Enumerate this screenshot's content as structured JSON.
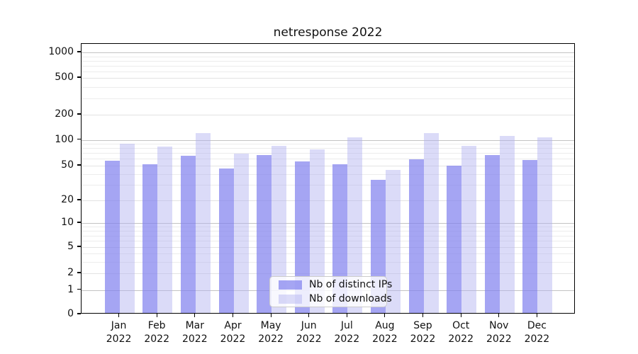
{
  "title": "netresponse 2022",
  "legend": {
    "item1": "Nb of distinct IPs",
    "item2": "Nb of downloads"
  },
  "colors": {
    "distinct_ips_bar": "rgba(130,130,238,0.72)",
    "downloads_bar": "rgba(176,176,240,0.45)",
    "grid_decade": "#c3c3c3",
    "grid_labeled": "#e3e3e3",
    "grid_minor": "#ececec",
    "axis": "#000000",
    "background": "#ffffff"
  },
  "chart_data": {
    "type": "bar",
    "title": "netresponse 2022",
    "xlabel": "",
    "ylabel": "",
    "yscale": "symlog",
    "ylim": [
      0,
      1300
    ],
    "grid": true,
    "legend_position": "lower center",
    "categories": [
      "Jan 2022",
      "Feb 2022",
      "Mar 2022",
      "Apr 2022",
      "May 2022",
      "Jun 2022",
      "Jul 2022",
      "Aug 2022",
      "Sep 2022",
      "Oct 2022",
      "Nov 2022",
      "Dec 2022"
    ],
    "yticks": [
      0,
      1,
      2,
      5,
      10,
      20,
      50,
      100,
      200,
      500,
      1000
    ],
    "minor_grid_values": [
      3,
      4,
      6,
      7,
      8,
      9,
      30,
      40,
      60,
      70,
      80,
      90,
      300,
      400,
      600,
      700,
      800,
      900
    ],
    "series": [
      {
        "name": "Nb of distinct IPs",
        "color": "rgba(130,130,238,0.72)",
        "values": [
          56,
          51,
          64,
          46,
          66,
          55,
          51,
          34,
          58,
          49,
          66,
          57
        ]
      },
      {
        "name": "Nb of downloads",
        "color": "rgba(176,176,240,0.45)",
        "values": [
          88,
          83,
          118,
          68,
          84,
          76,
          106,
          44,
          118,
          84,
          110,
          106
        ]
      }
    ]
  }
}
